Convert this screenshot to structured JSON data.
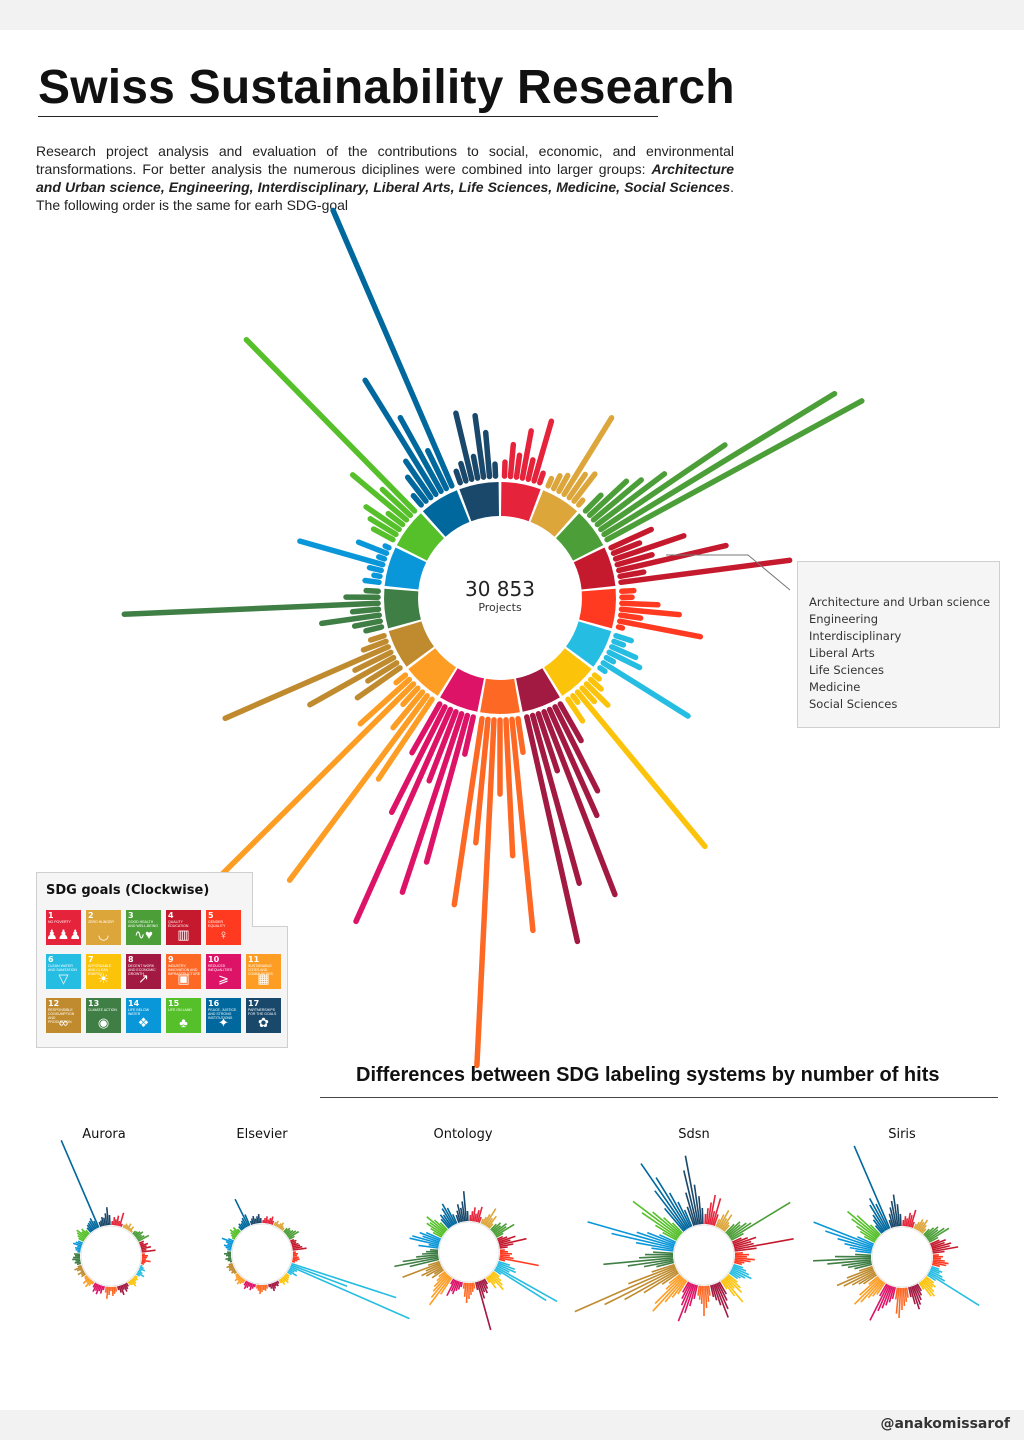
{
  "title": "Swiss Sustainability Research",
  "intro": {
    "text_before": "Research project analysis and evaluation of the contributions to social, economic, and environmental transformations. For better analysis the numerous diciplines were combined into larger groups: ",
    "groups_bold": "Architecture and Urban science, Engineering, Interdisciplinary, Liberal Arts, Life Sciences, Medicine, Social Sciences",
    "text_after": ". The following order is the same for earh SDG-goal"
  },
  "center": {
    "value": "30 853",
    "label": "Projects"
  },
  "legend": {
    "items": [
      "Architecture and Urban science",
      "Engineering",
      "Interdisciplinary",
      "Liberal Arts",
      "Life Sciences",
      "Medicine",
      "Social Sciences"
    ]
  },
  "sdg_panel": {
    "title": "SDG goals (Clockwise)",
    "goals": [
      {
        "n": "1",
        "name": "No poverty",
        "color": "#e5243b",
        "icon": "family-icon"
      },
      {
        "n": "2",
        "name": "Zero hunger",
        "color": "#dda63a",
        "icon": "bowl-icon"
      },
      {
        "n": "3",
        "name": "Good health and well-being",
        "color": "#4c9f38",
        "icon": "heartbeat-icon"
      },
      {
        "n": "4",
        "name": "Quality education",
        "color": "#c5192d",
        "icon": "book-icon"
      },
      {
        "n": "5",
        "name": "Gender equality",
        "color": "#ff3a21",
        "icon": "gender-icon"
      },
      {
        "n": "6",
        "name": "Clean water and sanitation",
        "color": "#26bde2",
        "icon": "water-drop-icon"
      },
      {
        "n": "7",
        "name": "Affordable and clean energy",
        "color": "#fcc30b",
        "icon": "sun-icon"
      },
      {
        "n": "8",
        "name": "Decent work and economic growth",
        "color": "#a21942",
        "icon": "growth-chart-icon"
      },
      {
        "n": "9",
        "name": "Industry, innovation and infrastructure",
        "color": "#fd6925",
        "icon": "cubes-icon"
      },
      {
        "n": "10",
        "name": "Reduced inequalities",
        "color": "#dd1367",
        "icon": "equality-icon"
      },
      {
        "n": "11",
        "name": "Sustainable cities and communities",
        "color": "#fd9d24",
        "icon": "city-icon"
      },
      {
        "n": "12",
        "name": "Responsible consumption and production",
        "color": "#bf8b2e",
        "icon": "infinity-icon"
      },
      {
        "n": "13",
        "name": "Climate action",
        "color": "#3f7e44",
        "icon": "eye-globe-icon"
      },
      {
        "n": "14",
        "name": "Life below water",
        "color": "#0a97d9",
        "icon": "fish-icon"
      },
      {
        "n": "15",
        "name": "Life on land",
        "color": "#56c02b",
        "icon": "tree-icon"
      },
      {
        "n": "16",
        "name": "Peace, justice and strong institutions",
        "color": "#00689d",
        "icon": "dove-icon"
      },
      {
        "n": "17",
        "name": "Partnerships for the goals",
        "color": "#19486a",
        "icon": "rings-icon"
      }
    ]
  },
  "differences": {
    "title": "Differences between SDG labeling systems by number of hits",
    "systems": [
      "Aurora",
      "Elsevier",
      "Ontology",
      "Sdsn",
      "Siris"
    ]
  },
  "credit": "@anakomissarof",
  "chart_data": {
    "type": "radial-bar",
    "note_order": "7 discipline groups per SDG goal, clockwise from SDG 1 at top",
    "main": {
      "total_projects": 30853,
      "relative_bar_lengths": [
        [
          14,
          32,
          22,
          48,
          20,
          62,
          10
        ],
        [
          8,
          14,
          18,
          90,
          28,
          34,
          6
        ],
        [
          22,
          50,
          62,
          84,
          150,
          270,
          290
        ],
        [
          44,
          28,
          72,
          36,
          110,
          24,
          170
        ],
        [
          12,
          10,
          36,
          58,
          20,
          82,
          4
        ],
        [
          16,
          10,
          26,
          34,
          8,
          100,
          6
        ],
        [
          6,
          14,
          30,
          18,
          200,
          8,
          26
        ],
        [
          42,
          94,
          116,
          196,
          60,
          174,
          230
        ],
        [
          34,
          212,
          136,
          74,
          346,
          124,
          188
        ],
        [
          38,
          152,
          188,
          74,
          232,
          118,
          56
        ],
        [
          96,
          230,
          46,
          22,
          278,
          66,
          12
        ],
        [
          52,
          34,
          96,
          40,
          178,
          24,
          14
        ],
        [
          16,
          26,
          58,
          26,
          254,
          32,
          12
        ],
        [
          14,
          6,
          12,
          86,
          6,
          30,
          4
        ],
        [
          22,
          30,
          40,
          18,
          70,
          38,
          240
        ],
        [
          12,
          30,
          44,
          134,
          84,
          42,
          300
        ],
        [
          12,
          18,
          68,
          22,
          62,
          44,
          12
        ]
      ]
    },
    "systems": [
      {
        "name": "Aurora",
        "relative_bar_lengths": [
          [
            4,
            8,
            6,
            10,
            5,
            14,
            3
          ],
          [
            3,
            5,
            4,
            7,
            3,
            6,
            2
          ],
          [
            4,
            5,
            7,
            9,
            6,
            8,
            12
          ],
          [
            5,
            4,
            8,
            6,
            10,
            5,
            14
          ],
          [
            3,
            6,
            5,
            4,
            9,
            4,
            3
          ],
          [
            2,
            4,
            6,
            3,
            5,
            8,
            4
          ],
          [
            3,
            5,
            4,
            6,
            8,
            5,
            4
          ],
          [
            4,
            6,
            8,
            5,
            10,
            7,
            4
          ],
          [
            5,
            7,
            9,
            4,
            8,
            12,
            6
          ],
          [
            4,
            8,
            6,
            10,
            7,
            9,
            5
          ],
          [
            3,
            6,
            9,
            5,
            8,
            4,
            3
          ],
          [
            5,
            4,
            7,
            3,
            6,
            8,
            4
          ],
          [
            4,
            6,
            5,
            8,
            7,
            5,
            6
          ],
          [
            3,
            5,
            6,
            4,
            9,
            7,
            5
          ],
          [
            6,
            8,
            10,
            12,
            7,
            9,
            5
          ],
          [
            6,
            8,
            9,
            10,
            12,
            8,
            95
          ],
          [
            5,
            6,
            9,
            8,
            12,
            18,
            10
          ]
        ]
      },
      {
        "name": "Elsevier",
        "relative_bar_lengths": [
          [
            3,
            5,
            7,
            4,
            6,
            8,
            4
          ],
          [
            4,
            6,
            3,
            5,
            7,
            4,
            3
          ],
          [
            5,
            7,
            6,
            8,
            10,
            12,
            6
          ],
          [
            4,
            6,
            5,
            7,
            8,
            10,
            14
          ],
          [
            3,
            5,
            4,
            6,
            7,
            5,
            3
          ],
          [
            110,
            60,
            130,
            8,
            6,
            10,
            5
          ],
          [
            4,
            5,
            6,
            8,
            5,
            7,
            4
          ],
          [
            3,
            5,
            4,
            6,
            8,
            5,
            3
          ],
          [
            4,
            6,
            5,
            7,
            9,
            6,
            4
          ],
          [
            3,
            5,
            7,
            4,
            6,
            8,
            5
          ],
          [
            4,
            6,
            8,
            5,
            7,
            4,
            3
          ],
          [
            3,
            5,
            4,
            6,
            5,
            7,
            4
          ],
          [
            2,
            4,
            6,
            3,
            5,
            7,
            4
          ],
          [
            4,
            6,
            8,
            5,
            7,
            12,
            6
          ],
          [
            3,
            5,
            7,
            9,
            6,
            8,
            4
          ],
          [
            5,
            7,
            6,
            8,
            10,
            30,
            12
          ],
          [
            4,
            6,
            8,
            5,
            7,
            9,
            5
          ]
        ]
      },
      {
        "name": "Ontology",
        "relative_bar_lengths": [
          [
            6,
            10,
            14,
            8,
            12,
            16,
            6
          ],
          [
            5,
            8,
            12,
            20,
            10,
            14,
            6
          ],
          [
            8,
            12,
            10,
            16,
            14,
            22,
            8
          ],
          [
            6,
            10,
            18,
            12,
            28,
            14,
            8
          ],
          [
            5,
            8,
            12,
            10,
            14,
            40,
            6
          ],
          [
            12,
            18,
            20,
            14,
            70,
            60,
            8
          ],
          [
            8,
            12,
            16,
            20,
            10,
            14,
            6
          ],
          [
            6,
            10,
            14,
            12,
            18,
            50,
            8
          ],
          [
            6,
            9,
            12,
            16,
            20,
            14,
            6
          ],
          [
            5,
            8,
            10,
            14,
            12,
            18,
            6
          ],
          [
            20,
            35,
            28,
            22,
            18,
            12,
            8
          ],
          [
            14,
            10,
            18,
            22,
            16,
            40,
            12
          ],
          [
            30,
            45,
            36,
            22,
            16,
            12,
            8
          ],
          [
            20,
            10,
            30,
            28,
            18,
            22,
            16
          ],
          [
            10,
            14,
            20,
            18,
            24,
            16,
            10
          ],
          [
            12,
            16,
            14,
            20,
            24,
            18,
            10
          ],
          [
            8,
            12,
            18,
            14,
            20,
            30,
            10
          ]
        ]
      },
      {
        "name": "Sdsn",
        "relative_bar_lengths": [
          [
            10,
            16,
            22,
            30,
            14,
            28,
            12
          ],
          [
            8,
            14,
            20,
            12,
            18,
            10,
            8
          ],
          [
            12,
            18,
            16,
            22,
            26,
            70,
            14
          ],
          [
            10,
            16,
            24,
            18,
            20,
            60,
            22
          ],
          [
            8,
            14,
            12,
            20,
            16,
            10,
            8
          ],
          [
            10,
            14,
            18,
            22,
            16,
            12,
            10
          ],
          [
            12,
            18,
            22,
            14,
            30,
            20,
            10
          ],
          [
            14,
            20,
            28,
            36,
            22,
            16,
            12
          ],
          [
            10,
            16,
            22,
            30,
            18,
            14,
            10
          ],
          [
            14,
            22,
            30,
            40,
            24,
            18,
            12
          ],
          [
            16,
            22,
            30,
            45,
            38,
            20,
            14
          ],
          [
            20,
            40,
            60,
            80,
            110,
            50,
            24
          ],
          [
            18,
            30,
            46,
            70,
            34,
            28,
            20
          ],
          [
            22,
            38,
            64,
            90,
            40,
            30,
            18
          ],
          [
            16,
            26,
            44,
            58,
            36,
            24,
            14
          ],
          [
            30,
            50,
            80,
            60,
            40,
            28,
            18
          ],
          [
            20,
            34,
            56,
            70,
            40,
            28,
            16
          ]
        ]
      },
      {
        "name": "Siris",
        "relative_bar_lengths": [
          [
            6,
            10,
            8,
            14,
            12,
            18,
            6
          ],
          [
            5,
            8,
            12,
            10,
            14,
            9,
            6
          ],
          [
            8,
            12,
            16,
            14,
            20,
            24,
            10
          ],
          [
            10,
            16,
            14,
            20,
            18,
            26,
            12
          ],
          [
            6,
            10,
            8,
            12,
            16,
            14,
            8
          ],
          [
            8,
            12,
            10,
            14,
            18,
            60,
            10
          ],
          [
            10,
            14,
            12,
            16,
            20,
            18,
            8
          ],
          [
            8,
            12,
            16,
            20,
            24,
            18,
            10
          ],
          [
            10,
            14,
            18,
            22,
            30,
            26,
            12
          ],
          [
            12,
            16,
            20,
            24,
            28,
            40,
            14
          ],
          [
            14,
            18,
            22,
            30,
            36,
            26,
            12
          ],
          [
            16,
            20,
            26,
            34,
            40,
            28,
            14
          ],
          [
            18,
            24,
            30,
            44,
            58,
            36,
            16
          ],
          [
            16,
            22,
            28,
            36,
            50,
            64,
            18
          ],
          [
            12,
            18,
            24,
            32,
            40,
            30,
            14
          ],
          [
            10,
            16,
            20,
            30,
            36,
            28,
            90
          ],
          [
            8,
            14,
            20,
            26,
            32,
            22,
            12
          ]
        ]
      }
    ]
  }
}
